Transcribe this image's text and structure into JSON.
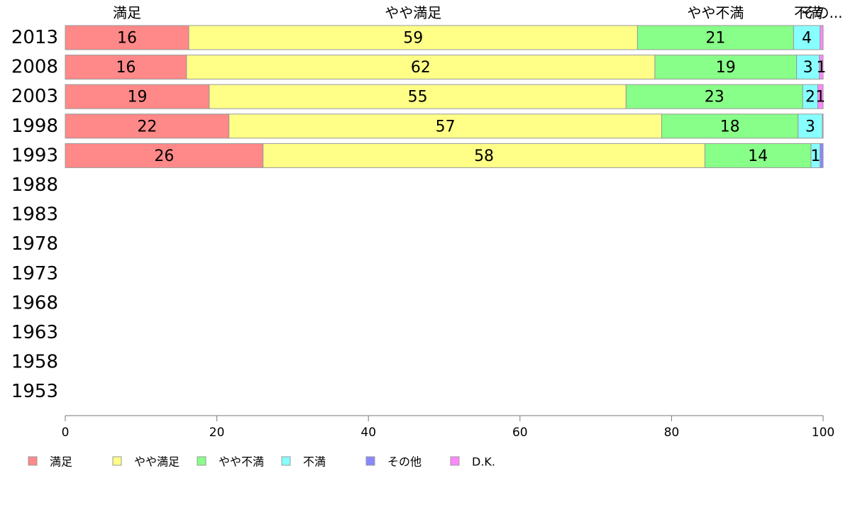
{
  "chart_data": {
    "type": "bar",
    "orientation": "horizontal",
    "stacked": true,
    "xlim": [
      0,
      100
    ],
    "x_ticks": [
      "0",
      "20",
      "40",
      "60",
      "80",
      "100"
    ],
    "categories": [
      "2013",
      "2008",
      "2003",
      "1998",
      "1993",
      "1988",
      "1983",
      "1978",
      "1973",
      "1968",
      "1963",
      "1958",
      "1953"
    ],
    "series": [
      {
        "name": "満足",
        "color": "#ff8888",
        "values": [
          16.3,
          16.0,
          19.0,
          21.6,
          26.1,
          null,
          null,
          null,
          null,
          null,
          null,
          null,
          null
        ]
      },
      {
        "name": "やや満足",
        "color": "#ffff88",
        "values": [
          59.2,
          61.8,
          55.0,
          57.1,
          58.3,
          null,
          null,
          null,
          null,
          null,
          null,
          null,
          null
        ]
      },
      {
        "name": "やや不満",
        "color": "#88ff88",
        "values": [
          20.6,
          18.7,
          23.3,
          18.0,
          14.0,
          null,
          null,
          null,
          null,
          null,
          null,
          null,
          null
        ]
      },
      {
        "name": "不満",
        "color": "#88ffff",
        "values": [
          3.5,
          3.0,
          2.0,
          3.2,
          1.2,
          null,
          null,
          null,
          null,
          null,
          null,
          null,
          null
        ]
      },
      {
        "name": "その他",
        "color": "#8888ff",
        "values": [
          0.0,
          0.0,
          0.0,
          0.0,
          0.4,
          null,
          null,
          null,
          null,
          null,
          null,
          null,
          null
        ]
      },
      {
        "name": "D.K.",
        "color": "#ff88ff",
        "values": [
          0.4,
          0.5,
          0.7,
          0.1,
          0.0,
          null,
          null,
          null,
          null,
          null,
          null,
          null,
          null
        ]
      }
    ],
    "bar_labels": [
      [
        "16",
        "59",
        "21",
        "4",
        "",
        ""
      ],
      [
        "16",
        "62",
        "19",
        "3",
        "",
        "1"
      ],
      [
        "19",
        "55",
        "23",
        "2",
        "",
        "1"
      ],
      [
        "22",
        "57",
        "18",
        "3",
        "",
        ""
      ],
      [
        "26",
        "58",
        "14",
        "1",
        "",
        ""
      ],
      [],
      [],
      [],
      [],
      [],
      [],
      [],
      []
    ],
    "top_labels": [
      "満足",
      "やや満足",
      "やや不満",
      "不満",
      "その..."
    ],
    "legend_position": "bottom-left",
    "grid": false
  }
}
